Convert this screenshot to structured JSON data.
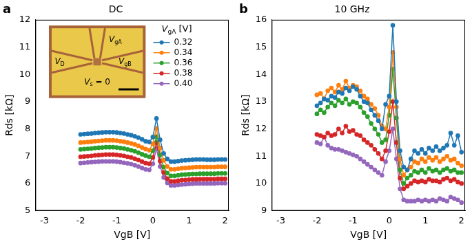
{
  "chart_data": [
    {
      "panel": "a",
      "type": "line",
      "title": "DC",
      "x_label": "VgB [V]",
      "y_label": "Rds [kΩ]",
      "x": [
        -2,
        -1.9,
        -1.8,
        -1.7,
        -1.6,
        -1.5,
        -1.4,
        -1.3,
        -1.2,
        -1.1,
        -1,
        -0.9,
        -0.8,
        -0.7,
        -0.6,
        -0.5,
        -0.4,
        -0.3,
        -0.2,
        -0.1,
        0,
        0.1,
        0.2,
        0.3,
        0.4,
        0.5,
        0.6,
        0.7,
        0.8,
        0.9,
        1,
        1.1,
        1.2,
        1.3,
        1.4,
        1.5,
        1.6,
        1.7,
        1.8,
        1.9,
        2
      ],
      "xlim": [
        -3.25,
        2.1
      ],
      "xticks": [
        -3,
        -2,
        -1,
        0,
        1,
        2
      ],
      "ylim": [
        5,
        12
      ],
      "yticks": [
        5,
        6,
        7,
        8,
        9,
        10,
        11,
        12
      ],
      "grid": false,
      "marker": "circle",
      "line_style": "solid",
      "legend": "upper right",
      "legend_title": "VgA [V]",
      "inset": {
        "labels": [
          "VgA",
          "VD",
          "VgB",
          "Vs = 0"
        ]
      },
      "series": [
        {
          "name": "0.32",
          "color": "#1f77b4",
          "values": [
            7.8,
            7.81,
            7.82,
            7.83,
            7.85,
            7.86,
            7.87,
            7.88,
            7.88,
            7.88,
            7.87,
            7.85,
            7.83,
            7.8,
            7.77,
            7.73,
            7.68,
            7.62,
            7.55,
            7.52,
            7.7,
            8.38,
            7.6,
            7.1,
            6.9,
            6.8,
            6.8,
            6.82,
            6.84,
            6.85,
            6.86,
            6.87,
            6.88,
            6.88,
            6.88,
            6.87,
            6.87,
            6.87,
            6.88,
            6.88,
            6.88
          ]
        },
        {
          "name": "0.34",
          "color": "#ff7f0e",
          "values": [
            7.5,
            7.51,
            7.52,
            7.53,
            7.55,
            7.56,
            7.57,
            7.58,
            7.58,
            7.58,
            7.57,
            7.55,
            7.53,
            7.5,
            7.47,
            7.43,
            7.38,
            7.32,
            7.26,
            7.22,
            7.45,
            8.02,
            7.3,
            6.85,
            6.62,
            6.52,
            6.52,
            6.54,
            6.56,
            6.57,
            6.58,
            6.59,
            6.6,
            6.6,
            6.6,
            6.6,
            6.6,
            6.6,
            6.61,
            6.61,
            6.61
          ]
        },
        {
          "name": "0.36",
          "color": "#2ca02c",
          "values": [
            7.25,
            7.26,
            7.27,
            7.28,
            7.3,
            7.31,
            7.32,
            7.33,
            7.33,
            7.33,
            7.32,
            7.3,
            7.28,
            7.25,
            7.22,
            7.18,
            7.13,
            7.07,
            7.02,
            6.98,
            7.2,
            7.72,
            7.05,
            6.6,
            6.38,
            6.28,
            6.28,
            6.3,
            6.32,
            6.33,
            6.34,
            6.35,
            6.35,
            6.36,
            6.36,
            6.36,
            6.36,
            6.36,
            6.37,
            6.37,
            6.37
          ]
        },
        {
          "name": "0.38",
          "color": "#d62728",
          "values": [
            6.98,
            6.99,
            7.0,
            7.01,
            7.03,
            7.04,
            7.05,
            7.06,
            7.06,
            7.06,
            7.05,
            7.03,
            7.01,
            6.98,
            6.95,
            6.91,
            6.86,
            6.8,
            6.75,
            6.72,
            6.95,
            7.5,
            6.82,
            6.4,
            6.18,
            6.08,
            6.08,
            6.1,
            6.12,
            6.13,
            6.14,
            6.15,
            6.15,
            6.16,
            6.16,
            6.16,
            6.16,
            6.16,
            6.17,
            6.17,
            6.17
          ]
        },
        {
          "name": "0.40",
          "color": "#9467bd",
          "values": [
            6.75,
            6.76,
            6.77,
            6.78,
            6.79,
            6.8,
            6.81,
            6.81,
            6.81,
            6.81,
            6.8,
            6.78,
            6.76,
            6.74,
            6.71,
            6.67,
            6.62,
            6.57,
            6.52,
            6.5,
            6.72,
            7.28,
            6.62,
            6.22,
            6.02,
            5.93,
            5.93,
            5.95,
            5.96,
            5.97,
            5.98,
            5.99,
            6.0,
            6.0,
            6.0,
            6.0,
            6.0,
            6.0,
            6.01,
            6.01,
            6.01
          ]
        }
      ]
    },
    {
      "panel": "b",
      "type": "line",
      "title": "10 GHz",
      "x_label": "VgB [V]",
      "y_label": "Rds [kΩ]",
      "x": [
        -2,
        -1.9,
        -1.8,
        -1.7,
        -1.6,
        -1.5,
        -1.4,
        -1.3,
        -1.2,
        -1.1,
        -1,
        -0.9,
        -0.8,
        -0.7,
        -0.6,
        -0.5,
        -0.4,
        -0.3,
        -0.2,
        -0.1,
        0,
        0.1,
        0.2,
        0.3,
        0.4,
        0.5,
        0.6,
        0.7,
        0.8,
        0.9,
        1,
        1.1,
        1.2,
        1.3,
        1.4,
        1.5,
        1.6,
        1.7,
        1.8,
        1.9,
        2
      ],
      "xlim": [
        -3.25,
        2.1
      ],
      "xticks": [
        -3,
        -2,
        -1,
        0,
        1,
        2
      ],
      "ylim": [
        9,
        16
      ],
      "yticks": [
        9,
        10,
        11,
        12,
        13,
        14,
        15,
        16
      ],
      "grid": false,
      "marker": "circle",
      "line_style": "solid",
      "legend": false,
      "series": [
        {
          "name": "0.32",
          "color": "#1f77b4",
          "values": [
            12.85,
            12.95,
            13.1,
            13.05,
            13.2,
            13.15,
            13.35,
            13.3,
            13.5,
            13.4,
            13.55,
            13.45,
            13.2,
            13.0,
            12.95,
            12.7,
            12.5,
            12.3,
            12.0,
            12.9,
            13.2,
            15.8,
            13.0,
            11.2,
            10.6,
            10.5,
            10.9,
            11.2,
            11.1,
            11.25,
            11.1,
            11.3,
            11.2,
            11.35,
            11.2,
            11.3,
            11.4,
            11.85,
            11.4,
            11.75,
            11.15
          ]
        },
        {
          "name": "0.34",
          "color": "#ff7f0e",
          "values": [
            13.25,
            13.3,
            13.1,
            13.4,
            13.5,
            13.35,
            13.6,
            13.45,
            13.75,
            13.5,
            13.6,
            13.55,
            13.4,
            13.2,
            13.1,
            12.9,
            12.75,
            12.5,
            12.1,
            12.0,
            12.8,
            14.8,
            12.8,
            10.9,
            10.3,
            10.5,
            10.6,
            10.8,
            10.75,
            10.9,
            10.8,
            10.95,
            10.85,
            10.95,
            10.8,
            10.9,
            11.0,
            10.85,
            10.9,
            10.75,
            10.65
          ]
        },
        {
          "name": "0.36",
          "color": "#2ca02c",
          "values": [
            12.55,
            12.7,
            12.6,
            12.8,
            12.95,
            12.85,
            13.05,
            12.95,
            13.1,
            12.9,
            13.0,
            12.95,
            12.8,
            12.6,
            12.45,
            12.2,
            12.0,
            11.8,
            11.5,
            11.6,
            12.5,
            14.2,
            12.4,
            10.5,
            10.0,
            10.2,
            10.3,
            10.45,
            10.4,
            10.5,
            10.4,
            10.55,
            10.45,
            10.5,
            10.4,
            10.5,
            10.55,
            10.45,
            10.5,
            10.4,
            10.4
          ]
        },
        {
          "name": "0.38",
          "color": "#d62728",
          "values": [
            11.8,
            11.75,
            11.7,
            11.85,
            11.75,
            11.8,
            12.0,
            11.85,
            12.1,
            11.9,
            11.95,
            11.8,
            11.75,
            11.6,
            11.5,
            11.4,
            11.25,
            11.1,
            10.9,
            11.2,
            11.9,
            13.0,
            11.5,
            10.2,
            9.8,
            9.9,
            10.0,
            10.1,
            10.05,
            10.1,
            10.05,
            10.15,
            10.1,
            10.1,
            10.05,
            10.15,
            10.2,
            10.1,
            10.15,
            10.05,
            10.0
          ]
        },
        {
          "name": "0.40",
          "color": "#9467bd",
          "values": [
            11.5,
            11.45,
            11.7,
            11.4,
            11.3,
            11.25,
            11.25,
            11.2,
            11.15,
            11.1,
            11.05,
            11.0,
            10.9,
            10.8,
            10.7,
            10.6,
            10.5,
            10.4,
            10.3,
            10.8,
            11.2,
            12.0,
            10.9,
            9.8,
            9.4,
            9.35,
            9.35,
            9.35,
            9.4,
            9.35,
            9.4,
            9.35,
            9.4,
            9.35,
            9.45,
            9.4,
            9.35,
            9.5,
            9.45,
            9.4,
            9.3
          ]
        }
      ]
    }
  ]
}
